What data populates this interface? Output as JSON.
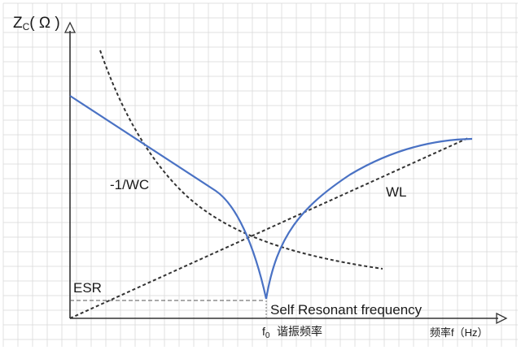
{
  "y_axis_label": "Z",
  "y_axis_subscript": "C",
  "y_axis_unit": "( Ω )",
  "x_axis_label_f0": "f",
  "x_axis_subscript_f0": "0",
  "x_axis_label_cn": "谐振频率",
  "x_axis_right_label": "频率f（Hz）",
  "curve_labels": {
    "capacitive": "-1/WC",
    "inductive": "WL",
    "esr": "ESR",
    "resonance": "Self Resonant frequency"
  },
  "colors": {
    "impedance_curve": "#4a72c4",
    "dashed_curves": "#333333",
    "grid": "#d9d9d9",
    "axes": "#333333"
  }
}
